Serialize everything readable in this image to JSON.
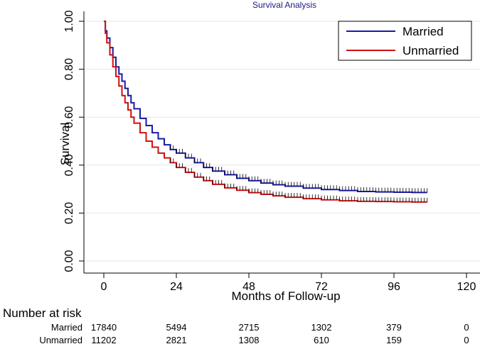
{
  "chart_data": {
    "type": "line",
    "title": "Survival Analysis",
    "xlabel": "Months of Follow-up",
    "ylabel": "Survival",
    "xlim": [
      0,
      120
    ],
    "ylim": [
      0,
      1
    ],
    "xticks": [
      0,
      24,
      48,
      72,
      96,
      120
    ],
    "yticks": [
      0.0,
      0.2,
      0.4,
      0.6,
      0.8,
      1.0
    ],
    "ytick_labels": [
      "0.00",
      "0.20",
      "0.40",
      "0.60",
      "0.80",
      "1.00"
    ],
    "grid": "horizontal",
    "legend_position": "top-right",
    "censor_marks": "tick marks along curves",
    "series": [
      {
        "name": "Married",
        "color": "#1a1aa6",
        "x": [
          0,
          0.5,
          1,
          2,
          3,
          4,
          5,
          6,
          7,
          8,
          9,
          10,
          12,
          14,
          16,
          18,
          20,
          22,
          24,
          27,
          30,
          33,
          36,
          40,
          44,
          48,
          52,
          56,
          60,
          66,
          72,
          78,
          84,
          90,
          96,
          102,
          107
        ],
        "values": [
          1.0,
          0.96,
          0.93,
          0.89,
          0.85,
          0.81,
          0.78,
          0.75,
          0.72,
          0.69,
          0.66,
          0.635,
          0.595,
          0.565,
          0.535,
          0.51,
          0.485,
          0.465,
          0.45,
          0.43,
          0.41,
          0.39,
          0.375,
          0.36,
          0.345,
          0.335,
          0.325,
          0.318,
          0.312,
          0.304,
          0.298,
          0.294,
          0.29,
          0.288,
          0.287,
          0.286,
          0.286
        ]
      },
      {
        "name": "Unmarried",
        "color": "#cc1111",
        "x": [
          0,
          0.5,
          1,
          2,
          3,
          4,
          5,
          6,
          7,
          8,
          9,
          10,
          12,
          14,
          16,
          18,
          20,
          22,
          24,
          27,
          30,
          33,
          36,
          40,
          44,
          48,
          52,
          56,
          60,
          66,
          72,
          78,
          84,
          90,
          96,
          102,
          107
        ],
        "values": [
          1.0,
          0.95,
          0.91,
          0.86,
          0.81,
          0.77,
          0.73,
          0.69,
          0.66,
          0.63,
          0.6,
          0.575,
          0.535,
          0.5,
          0.475,
          0.45,
          0.43,
          0.41,
          0.39,
          0.37,
          0.35,
          0.335,
          0.32,
          0.305,
          0.295,
          0.285,
          0.278,
          0.272,
          0.266,
          0.26,
          0.255,
          0.251,
          0.249,
          0.248,
          0.247,
          0.246,
          0.246
        ]
      }
    ],
    "risk_table": {
      "header": "Number at risk",
      "timepoints": [
        0,
        24,
        48,
        72,
        96,
        120
      ],
      "rows": [
        {
          "label": "Married",
          "counts": [
            "17840",
            "5494",
            "2715",
            "1302",
            "379",
            "0"
          ]
        },
        {
          "label": "Unmarried",
          "counts": [
            "11202",
            "2821",
            "1308",
            "610",
            "159",
            "0"
          ]
        }
      ]
    }
  }
}
